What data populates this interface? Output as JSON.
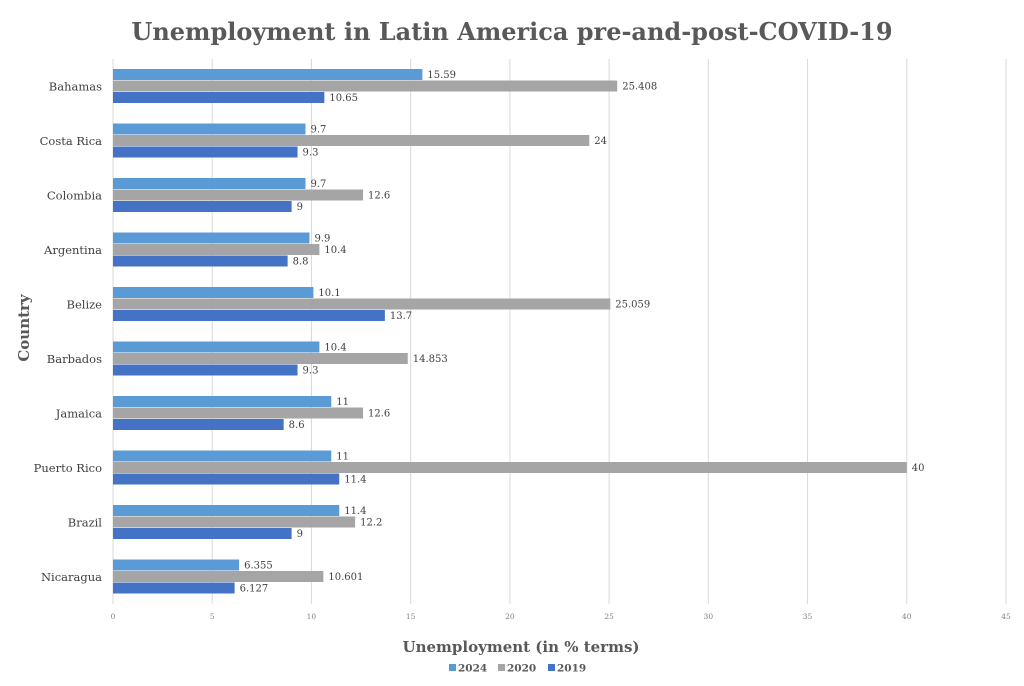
{
  "chart_data": {
    "type": "bar",
    "orientation": "horizontal",
    "title": "Unemployment in Latin America pre-and-post-COVID-19",
    "xlabel": "Unemployment (in % terms)",
    "ylabel": "Country",
    "xlim": [
      0,
      45
    ],
    "xticks": [
      0,
      5,
      10,
      15,
      20,
      25,
      30,
      35,
      40,
      45
    ],
    "grid": true,
    "legend_position": "bottom",
    "categories": [
      "Bahamas",
      "Costa Rica",
      "Colombia",
      "Argentina",
      "Belize",
      "Barbados",
      "Jamaica",
      "Puerto Rico",
      "Brazil",
      "Nicaragua"
    ],
    "series": [
      {
        "name": "2024",
        "color": "#5B9BD5",
        "values": [
          15.59,
          9.7,
          9.7,
          9.9,
          10.1,
          10.4,
          11,
          11,
          11.4,
          6.355
        ]
      },
      {
        "name": "2020",
        "color": "#A5A5A5",
        "values": [
          25.408,
          24,
          12.6,
          10.4,
          25.059,
          14.853,
          12.6,
          40,
          12.2,
          10.601
        ]
      },
      {
        "name": "2019",
        "color": "#4472C4",
        "values": [
          10.65,
          9.3,
          9,
          8.8,
          13.7,
          9.3,
          8.6,
          11.4,
          9,
          6.127
        ]
      }
    ]
  }
}
